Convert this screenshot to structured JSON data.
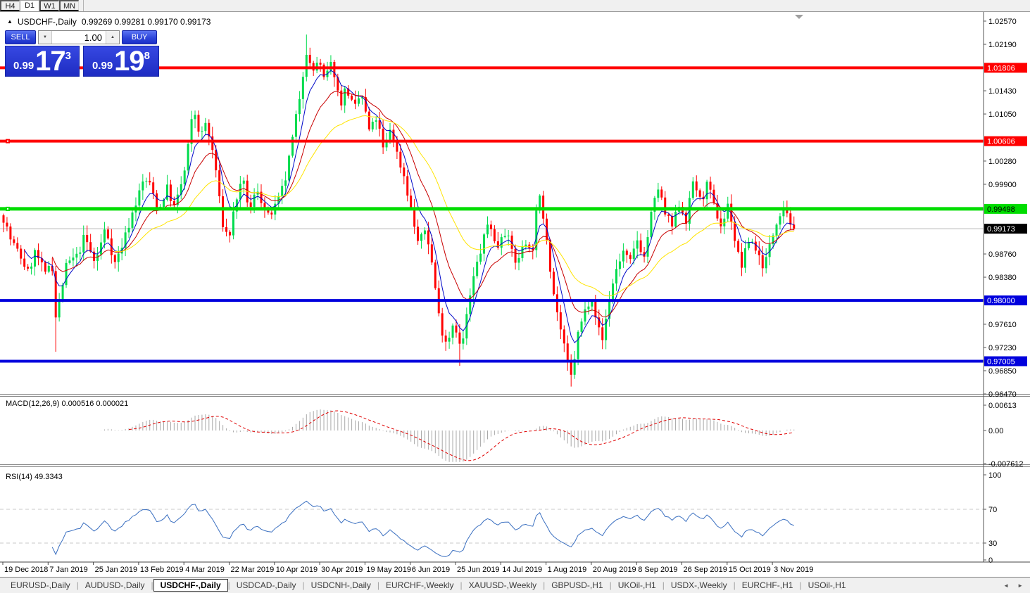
{
  "toolbar": {
    "timeframes": [
      {
        "label": "H4",
        "active": false
      },
      {
        "label": "D1",
        "active": true
      },
      {
        "label": "W1",
        "active": false
      },
      {
        "label": "MN",
        "active": false
      }
    ]
  },
  "header": {
    "collapse_icon": "▲",
    "symbol": "USDCHF-,Daily",
    "ohlc": "0.99269 0.99281 0.99170 0.99173"
  },
  "trade": {
    "sell_label": "SELL",
    "buy_label": "BUY",
    "volume": "1.00",
    "volume_down_icon": "▼",
    "volume_up_icon": "▲",
    "sell_price": {
      "prefix": "0.99",
      "big": "17",
      "sup": "3"
    },
    "buy_price": {
      "prefix": "0.99",
      "big": "19",
      "sup": "8"
    }
  },
  "scroll_marker_icon": "down-triangle",
  "chart_data": {
    "type": "candlestick",
    "symbol": "USDCHF",
    "timeframe": "Daily",
    "title": "USDCHF-,Daily",
    "ohlc_display": {
      "open": 0.99269,
      "high": 0.99281,
      "low": 0.9917,
      "close": 0.99173
    },
    "x_labels": [
      "19 Dec 2018",
      "7 Jan 2019",
      "25 Jan 2019",
      "13 Feb 2019",
      "4 Mar 2019",
      "22 Mar 2019",
      "10 Apr 2019",
      "30 Apr 2019",
      "19 May 2019",
      "6 Jun 2019",
      "25 Jun 2019",
      "14 Jul 2019",
      "1 Aug 2019",
      "20 Aug 2019",
      "8 Sep 2019",
      "26 Sep 2019",
      "15 Oct 2019",
      "3 Nov 2019"
    ],
    "y_ticks": [
      "1.02570",
      "1.02190",
      "1.01430",
      "1.01050",
      "1.00280",
      "0.99900",
      "0.98760",
      "0.98380",
      "0.97610",
      "0.97230",
      "0.96850",
      "0.96470"
    ],
    "y_top": 1.0257,
    "y_bottom": 0.9647,
    "price_anchors": [
      [
        5,
        0.9935
      ],
      [
        15,
        0.99
      ],
      [
        30,
        0.987
      ],
      [
        40,
        0.9845
      ],
      [
        50,
        0.988
      ],
      [
        65,
        0.984
      ],
      [
        73,
        0.9875
      ],
      [
        80,
        0.976
      ],
      [
        85,
        0.9805
      ],
      [
        95,
        0.986
      ],
      [
        110,
        0.9872
      ],
      [
        120,
        0.9905
      ],
      [
        135,
        0.986
      ],
      [
        150,
        0.992
      ],
      [
        163,
        0.986
      ],
      [
        175,
        0.9895
      ],
      [
        190,
        0.995
      ],
      [
        205,
        1.0
      ],
      [
        215,
        0.9985
      ],
      [
        225,
        0.9945
      ],
      [
        237,
        0.9985
      ],
      [
        248,
        0.995
      ],
      [
        262,
        1.001
      ],
      [
        275,
        1.0115
      ],
      [
        285,
        1.0065
      ],
      [
        292,
        1.009
      ],
      [
        305,
        1.003
      ],
      [
        315,
        0.993
      ],
      [
        325,
        0.99
      ],
      [
        335,
        0.9965
      ],
      [
        345,
        0.9995
      ],
      [
        355,
        0.9945
      ],
      [
        365,
        0.9985
      ],
      [
        380,
        0.9935
      ],
      [
        393,
        0.9955
      ],
      [
        405,
        0.9995
      ],
      [
        415,
        1.006
      ],
      [
        425,
        1.013
      ],
      [
        435,
        1.021
      ],
      [
        443,
        1.017
      ],
      [
        452,
        1.0195
      ],
      [
        460,
        1.016
      ],
      [
        472,
        1.019
      ],
      [
        483,
        1.012
      ],
      [
        492,
        1.015
      ],
      [
        503,
        1.011
      ],
      [
        513,
        1.014
      ],
      [
        525,
        1.0075
      ],
      [
        535,
        1.01
      ],
      [
        545,
        1.0042
      ],
      [
        555,
        1.0085
      ],
      [
        565,
        1.0035
      ],
      [
        575,
        1.0
      ],
      [
        585,
        0.994
      ],
      [
        595,
        0.989
      ],
      [
        605,
        0.992
      ],
      [
        615,
        0.985
      ],
      [
        625,
        0.976
      ],
      [
        635,
        0.973
      ],
      [
        645,
        0.977
      ],
      [
        655,
        0.9715
      ],
      [
        665,
        0.979
      ],
      [
        675,
        0.985
      ],
      [
        685,
        0.989
      ],
      [
        695,
        0.9935
      ],
      [
        705,
        0.988
      ],
      [
        715,
        0.992
      ],
      [
        725,
        0.989
      ],
      [
        735,
        0.9855
      ],
      [
        745,
        0.9905
      ],
      [
        755,
        0.987
      ],
      [
        765,
        0.9975
      ],
      [
        775,
        0.992
      ],
      [
        785,
        0.982
      ],
      [
        795,
        0.976
      ],
      [
        805,
        0.97
      ],
      [
        812,
        0.9672
      ],
      [
        820,
        0.974
      ],
      [
        830,
        0.978
      ],
      [
        840,
        0.981
      ],
      [
        848,
        0.9765
      ],
      [
        855,
        0.973
      ],
      [
        865,
        0.98
      ],
      [
        875,
        0.985
      ],
      [
        885,
        0.988
      ],
      [
        895,
        0.986
      ],
      [
        905,
        0.99
      ],
      [
        915,
        0.987
      ],
      [
        925,
        0.994
      ],
      [
        935,
        0.9985
      ],
      [
        945,
        0.994
      ],
      [
        955,
        0.992
      ],
      [
        965,
        0.996
      ],
      [
        975,
        0.993
      ],
      [
        985,
        1.0
      ],
      [
        995,
        0.996
      ],
      [
        1005,
        0.999
      ],
      [
        1015,
        0.995
      ],
      [
        1025,
        0.992
      ],
      [
        1035,
        0.996
      ],
      [
        1045,
        0.989
      ],
      [
        1053,
        0.9855
      ],
      [
        1065,
        0.9905
      ],
      [
        1075,
        0.988
      ],
      [
        1085,
        0.9855
      ],
      [
        1095,
        0.9895
      ],
      [
        1105,
        0.994
      ],
      [
        1115,
        0.9955
      ],
      [
        1122,
        0.993
      ],
      [
        1127,
        0.99173
      ]
    ],
    "spikes": [
      {
        "x": 80,
        "low": 0.9716
      },
      {
        "x": 435,
        "high": 1.0235
      },
      {
        "x": 655,
        "low": 0.9693
      },
      {
        "x": 812,
        "low": 0.9659
      }
    ],
    "levels": [
      {
        "price": 1.01806,
        "label": "1.01806",
        "color": "#ff0000",
        "text": "#ffffff",
        "width": 4,
        "handle": false
      },
      {
        "price": 1.00606,
        "label": "1.00606",
        "color": "#ff0000",
        "text": "#ffffff",
        "width": 4,
        "handle": true
      },
      {
        "price": 0.99498,
        "label": "0.99498",
        "color": "#00dd00",
        "text": "#000000",
        "width": 5,
        "handle": true
      },
      {
        "price": 0.98,
        "label": "0.98000",
        "color": "#0000dd",
        "text": "#ffffff",
        "width": 4,
        "handle": false
      },
      {
        "price": 0.97005,
        "label": "0.97005",
        "color": "#0000dd",
        "text": "#ffffff",
        "width": 4,
        "handle": false
      }
    ],
    "current_price": {
      "value": 0.99173,
      "label": "0.99173",
      "line_color": "#b8b8b8",
      "badge_bg": "#000000",
      "badge_text": "#ffffff"
    },
    "moving_averages": [
      {
        "period": 6,
        "color": "#0008c8"
      },
      {
        "period": 14,
        "color": "#c80000"
      },
      {
        "period": 32,
        "color": "#ffe400"
      }
    ],
    "bull_color": "#00db4d",
    "bear_color": "#ff0000",
    "macd": {
      "label": "MACD(12,26,9) 0.000516 0.000021",
      "fast": 12,
      "slow": 26,
      "signal": 9,
      "axis_labels": [
        "0.00613",
        "0.00",
        "-0.007612"
      ],
      "hist_color": "#a8a8a8",
      "signal_color": "#e00000",
      "value_main": 0.000516,
      "value_signal": 2.1e-05
    },
    "rsi": {
      "label": "RSI(14) 49.3343",
      "period": 14,
      "value": 49.3343,
      "axis_labels": [
        "100",
        "70",
        "30",
        "0"
      ],
      "levels": [
        70,
        30
      ],
      "line_color": "#3a6fc0",
      "level_color": "#c8c8c8"
    }
  },
  "tabs": {
    "items": [
      {
        "label": "EURUSD-,Daily",
        "active": false
      },
      {
        "label": "AUDUSD-,Daily",
        "active": false
      },
      {
        "label": "USDCHF-,Daily",
        "active": true
      },
      {
        "label": "USDCAD-,Daily",
        "active": false
      },
      {
        "label": "USDCNH-,Daily",
        "active": false
      },
      {
        "label": "EURCHF-,Weekly",
        "active": false
      },
      {
        "label": "XAUUSD-,Weekly",
        "active": false
      },
      {
        "label": "GBPUSD-,H1",
        "active": false
      },
      {
        "label": "UKOil-,H1",
        "active": false
      },
      {
        "label": "USDX-,Weekly",
        "active": false
      },
      {
        "label": "EURCHF-,H1",
        "active": false
      },
      {
        "label": "USOil-,H1",
        "active": false
      }
    ],
    "scroll_left_icon": "◄",
    "scroll_right_icon": "►"
  }
}
